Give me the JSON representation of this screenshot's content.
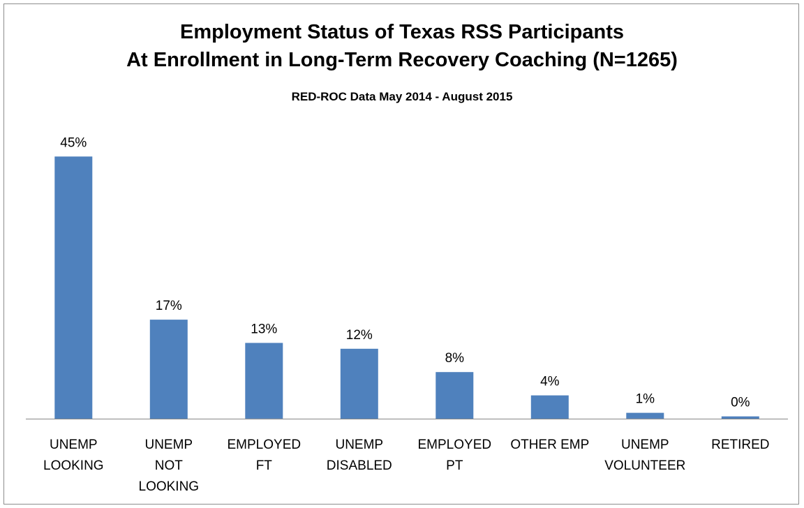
{
  "chart_data": {
    "type": "bar",
    "title": "Employment Status of Texas RSS Participants",
    "title_line2": "At Enrollment in Long-Term Recovery Coaching (N=1265)",
    "subtitle": "RED-ROC Data May 2014 - August 2015",
    "categories": [
      [
        "UNEMP",
        "LOOKING"
      ],
      [
        "UNEMP",
        "NOT",
        "LOOKING"
      ],
      [
        "EMPLOYED",
        "FT"
      ],
      [
        "UNEMP",
        "DISABLED"
      ],
      [
        "EMPLOYED",
        "PT"
      ],
      [
        "OTHER EMP"
      ],
      [
        "UNEMP",
        "VOLUNTEER"
      ],
      [
        "RETIRED"
      ]
    ],
    "values": [
      45,
      17,
      13,
      12,
      8,
      4,
      1,
      0.4
    ],
    "data_labels": [
      "45%",
      "17%",
      "13%",
      "12%",
      "8%",
      "4%",
      "1%",
      "0%"
    ],
    "ylim": [
      0,
      50
    ],
    "grid": false,
    "legend": "none",
    "bar_color": "#4f81bd"
  }
}
